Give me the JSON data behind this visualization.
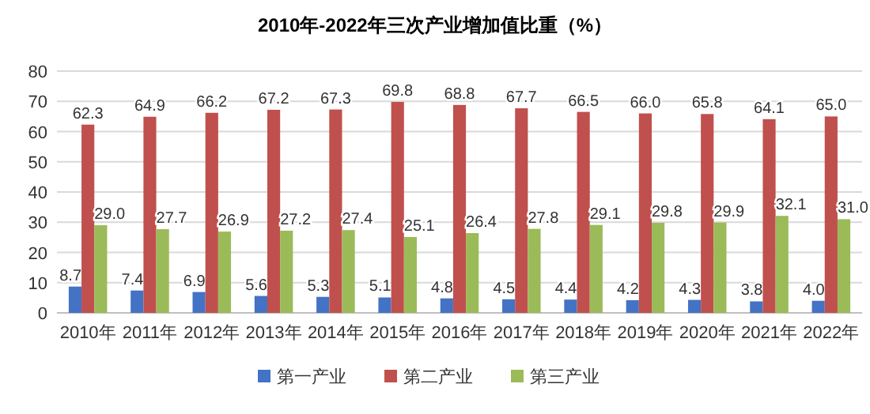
{
  "chart_data": {
    "type": "bar",
    "title": "2010年-2022年三次产业增加值比重（%）",
    "categories": [
      "2010年",
      "2011年",
      "2012年",
      "2013年",
      "2014年",
      "2015年",
      "2016年",
      "2017年",
      "2018年",
      "2019年",
      "2020年",
      "2021年",
      "2022年"
    ],
    "series": [
      {
        "name": "第一产业",
        "color": "#4472c4",
        "values": [
          8.7,
          7.4,
          6.9,
          5.6,
          5.3,
          5.1,
          4.8,
          4.5,
          4.4,
          4.2,
          4.3,
          3.8,
          4.0
        ]
      },
      {
        "name": "第二产业",
        "color": "#c0504d",
        "values": [
          62.3,
          64.9,
          66.2,
          67.2,
          67.3,
          69.8,
          68.8,
          67.7,
          66.5,
          66.0,
          65.8,
          64.1,
          65.0
        ]
      },
      {
        "name": "第三产业",
        "color": "#9bbb59",
        "values": [
          29.0,
          27.7,
          26.9,
          27.2,
          27.4,
          25.1,
          26.4,
          27.8,
          29.1,
          29.8,
          29.9,
          32.1,
          31.0
        ]
      }
    ],
    "value_labels": [
      [
        "8.7",
        "7.4",
        "6.9",
        "5.6",
        "5.3",
        "5.1",
        "4.8",
        "4.5",
        "4.4",
        "4.2",
        "4.3",
        "3.8",
        "4.0"
      ],
      [
        "62.3",
        "64.9",
        "66.2",
        "67.2",
        "67.3",
        "69.8",
        "68.8",
        "67.7",
        "66.5",
        "66.0",
        "65.8",
        "64.1",
        "65.0"
      ],
      [
        "29.0",
        "27.7",
        "26.9",
        "27.2",
        "27.4",
        "25.1",
        "26.4",
        "27.8",
        "29.1",
        "29.8",
        "29.9",
        "32.1",
        "31.0"
      ]
    ],
    "ylim": [
      0,
      80
    ],
    "yticks": [
      0,
      10,
      20,
      30,
      40,
      50,
      60,
      70,
      80
    ],
    "grid": "y",
    "legend": "bottom"
  }
}
